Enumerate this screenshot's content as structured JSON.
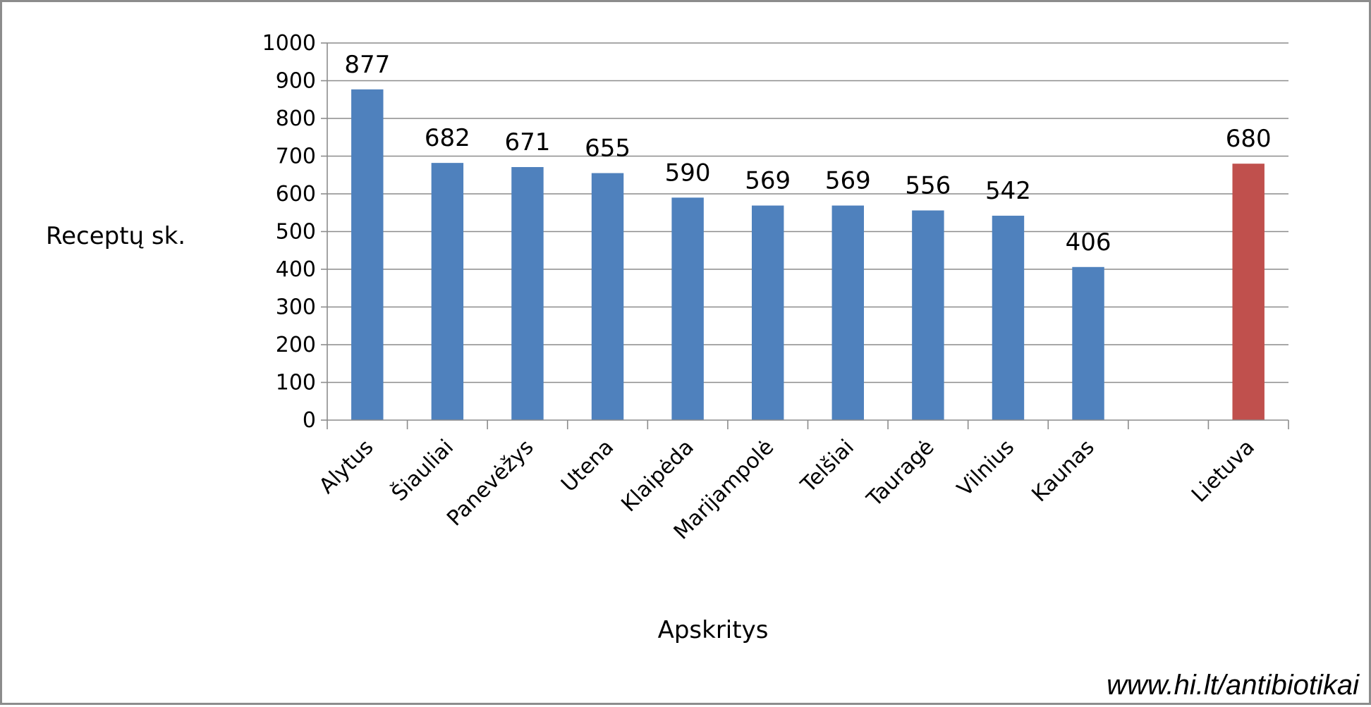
{
  "source_note": "www.hi.lt/antibiotikai",
  "colors": {
    "primary": "#4f81bd",
    "highlight": "#c0504d",
    "grid": "#8c8c8c"
  },
  "chart_data": {
    "type": "bar",
    "xlabel": "Apskritys",
    "ylabel": "Receptų sk.",
    "ylim": [
      0,
      1000
    ],
    "yticks": [
      0,
      100,
      200,
      300,
      400,
      500,
      600,
      700,
      800,
      900,
      1000
    ],
    "grid": true,
    "categories": [
      "Alytus",
      "Šiauliai",
      "Panevėžys",
      "Utena",
      "Klaipėda",
      "Marijampolė",
      "Telšiai",
      "Tauragė",
      "Vilnius",
      "Kaunas",
      "",
      "Lietuva"
    ],
    "values": [
      877,
      682,
      671,
      655,
      590,
      569,
      569,
      556,
      542,
      406,
      null,
      680
    ],
    "data_labels": [
      "877",
      "682",
      "671",
      "655",
      "590",
      "569",
      "569",
      "556",
      "542",
      "406",
      "",
      "680"
    ],
    "highlight_category": "Lietuva"
  }
}
